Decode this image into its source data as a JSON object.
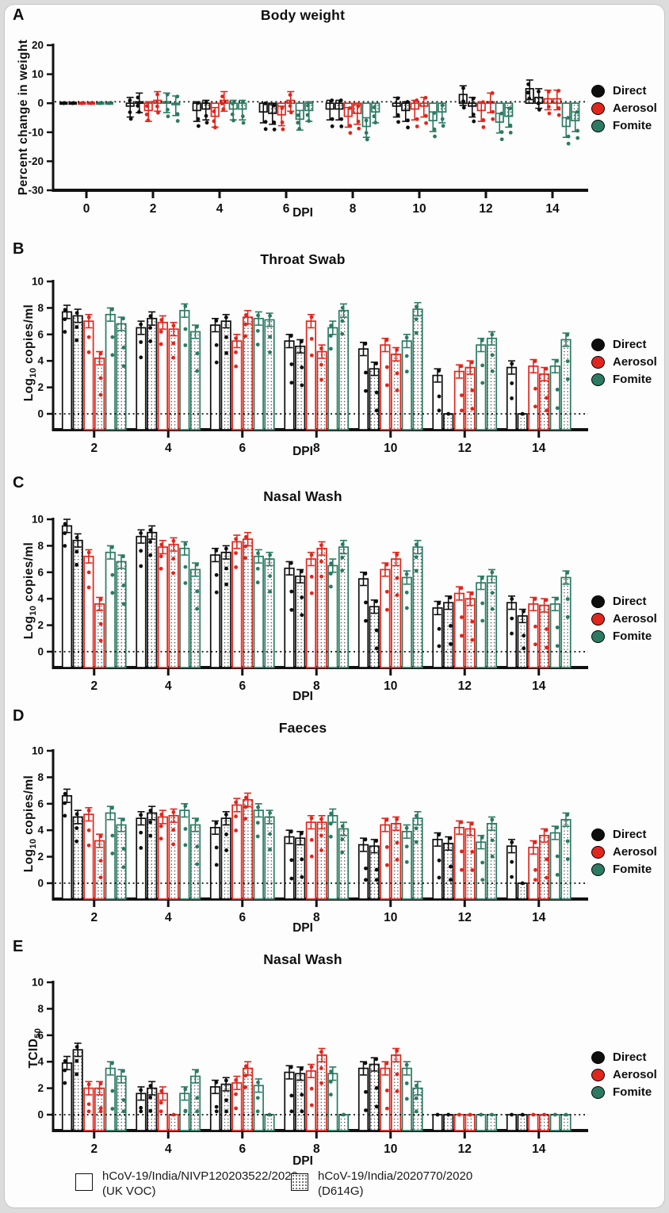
{
  "figure": {
    "series_legend": {
      "items": [
        {
          "label": "Direct",
          "color": "#0e0e0e"
        },
        {
          "label": "Aerosol",
          "color": "#e1261d"
        },
        {
          "label": "Fomite",
          "color": "#2c7a62"
        }
      ]
    },
    "bottom_legend": {
      "items": [
        {
          "swatch": "open",
          "line1": "hCoV-19/India/NIVP120203522/2020",
          "line2": "(UK VOC)"
        },
        {
          "swatch": "dotted",
          "line1": "hCoV-19/India/2020770/2020",
          "line2": "(D614G)"
        }
      ]
    }
  },
  "chart_data": [
    {
      "panel": "A",
      "type": "bar",
      "title": "Body weight",
      "xlabel": "DPI",
      "ylabel_pre": "Percent change in weight",
      "ylabel_sub": "",
      "ylabel_post": "",
      "categories": [
        0,
        2,
        4,
        6,
        8,
        10,
        12,
        14
      ],
      "ylim": [
        -30,
        20
      ],
      "yticks": [
        20,
        10,
        0,
        -10,
        -20,
        -30
      ],
      "ref_line_y": 0.5,
      "grid": false,
      "legend_position": "right",
      "series": [
        {
          "name": "Direct (UK VOC)",
          "color": "#0e0e0e",
          "fill": "open",
          "values": [
            0,
            -1,
            -2.5,
            -3,
            -2,
            -1,
            3,
            5
          ]
        },
        {
          "name": "Direct (D614G)",
          "color": "#0e0e0e",
          "fill": "dotted",
          "values": [
            0,
            0.5,
            -2,
            -3.5,
            -2,
            -2.5,
            -1,
            2
          ]
        },
        {
          "name": "Aerosol (UK VOC)",
          "color": "#e1261d",
          "fill": "open",
          "values": [
            0,
            -2.5,
            -4.5,
            -4,
            -4.5,
            -2,
            -2.5,
            1.5
          ]
        },
        {
          "name": "Aerosol (D614G)",
          "color": "#e1261d",
          "fill": "dotted",
          "values": [
            0,
            1,
            1,
            1,
            -3.5,
            -1,
            0.5,
            1.5
          ]
        },
        {
          "name": "Fomite (UK VOC)",
          "color": "#2c7a62",
          "fill": "open",
          "values": [
            0,
            0.5,
            -2,
            -5.5,
            -8,
            -6,
            -6.5,
            -8
          ]
        },
        {
          "name": "Fomite (D614G)",
          "color": "#2c7a62",
          "fill": "dotted",
          "values": [
            0,
            -0.5,
            -2,
            -2.5,
            -3,
            -3,
            -4.5,
            -6
          ]
        }
      ]
    },
    {
      "panel": "B",
      "type": "bar",
      "title": "Throat Swab",
      "xlabel": "DPI",
      "ylabel_pre": "Log",
      "ylabel_sub": "10",
      "ylabel_post": " copies/ml",
      "categories": [
        2,
        4,
        6,
        8,
        10,
        12,
        14
      ],
      "ylim": [
        0,
        10
      ],
      "yticks": [
        10,
        8,
        6,
        4,
        2,
        0
      ],
      "ref_line_y": 0,
      "grid": false,
      "legend_position": "right",
      "series": [
        {
          "name": "Direct (UK VOC)",
          "color": "#0e0e0e",
          "fill": "open",
          "values": [
            7.7,
            6.5,
            6.7,
            5.5,
            4.9,
            2.9,
            3.5
          ]
        },
        {
          "name": "Direct (D614G)",
          "color": "#0e0e0e",
          "fill": "dotted",
          "values": [
            7.4,
            7.2,
            7.0,
            5.1,
            3.4,
            0,
            0
          ]
        },
        {
          "name": "Aerosol (UK VOC)",
          "color": "#e1261d",
          "fill": "open",
          "values": [
            7.0,
            6.9,
            5.5,
            7.0,
            5.2,
            3.2,
            3.6
          ]
        },
        {
          "name": "Aerosol (D614G)",
          "color": "#e1261d",
          "fill": "dotted",
          "values": [
            4.2,
            6.4,
            7.3,
            4.7,
            4.5,
            3.5,
            3.0
          ]
        },
        {
          "name": "Fomite (UK VOC)",
          "color": "#2c7a62",
          "fill": "open",
          "values": [
            7.5,
            7.8,
            7.2,
            6.5,
            5.5,
            5.2,
            3.6
          ]
        },
        {
          "name": "Fomite (D614G)",
          "color": "#2c7a62",
          "fill": "dotted",
          "values": [
            6.8,
            6.2,
            7.1,
            7.8,
            7.9,
            5.7,
            5.6
          ]
        }
      ]
    },
    {
      "panel": "C",
      "type": "bar",
      "title": "Nasal Wash",
      "xlabel": "DPI",
      "ylabel_pre": "Log",
      "ylabel_sub": "10",
      "ylabel_post": " copies/ml",
      "categories": [
        2,
        4,
        6,
        8,
        10,
        12,
        14
      ],
      "ylim": [
        0,
        10
      ],
      "yticks": [
        10,
        8,
        6,
        4,
        2,
        0
      ],
      "ref_line_y": 0,
      "grid": false,
      "legend_position": "right",
      "series": [
        {
          "name": "Direct (UK VOC)",
          "color": "#0e0e0e",
          "fill": "open",
          "values": [
            9.5,
            8.7,
            7.3,
            6.3,
            5.5,
            3.3,
            3.7
          ]
        },
        {
          "name": "Direct (D614G)",
          "color": "#0e0e0e",
          "fill": "dotted",
          "values": [
            8.4,
            9.0,
            7.5,
            5.7,
            3.4,
            3.7,
            2.7
          ]
        },
        {
          "name": "Aerosol (UK VOC)",
          "color": "#e1261d",
          "fill": "open",
          "values": [
            7.2,
            7.9,
            8.3,
            7.0,
            6.2,
            4.4,
            3.6
          ]
        },
        {
          "name": "Aerosol (D614G)",
          "color": "#e1261d",
          "fill": "dotted",
          "values": [
            3.6,
            8.1,
            8.5,
            7.8,
            7.0,
            4.0,
            3.5
          ]
        },
        {
          "name": "Fomite (UK VOC)",
          "color": "#2c7a62",
          "fill": "open",
          "values": [
            7.5,
            7.8,
            7.2,
            6.5,
            5.6,
            5.2,
            3.6
          ]
        },
        {
          "name": "Fomite (D614G)",
          "color": "#2c7a62",
          "fill": "dotted",
          "values": [
            6.8,
            6.2,
            7.0,
            7.9,
            7.9,
            5.7,
            5.6
          ]
        }
      ]
    },
    {
      "panel": "D",
      "type": "bar",
      "title": "Faeces",
      "xlabel": "DPI",
      "ylabel_pre": "Log",
      "ylabel_sub": "10",
      "ylabel_post": " copies/ml",
      "categories": [
        2,
        4,
        6,
        8,
        10,
        12,
        14
      ],
      "ylim": [
        0,
        10
      ],
      "yticks": [
        10,
        8,
        6,
        4,
        2,
        0
      ],
      "ref_line_y": 0,
      "grid": false,
      "legend_position": "right",
      "series": [
        {
          "name": "Direct (UK VOC)",
          "color": "#0e0e0e",
          "fill": "open",
          "values": [
            6.6,
            4.9,
            4.2,
            3.5,
            2.9,
            3.3,
            2.8
          ]
        },
        {
          "name": "Direct (D614G)",
          "color": "#0e0e0e",
          "fill": "dotted",
          "values": [
            5.0,
            5.3,
            4.9,
            3.4,
            2.8,
            3.0,
            0
          ]
        },
        {
          "name": "Aerosol (UK VOC)",
          "color": "#e1261d",
          "fill": "open",
          "values": [
            5.2,
            5.0,
            5.9,
            4.6,
            4.4,
            4.2,
            2.7
          ]
        },
        {
          "name": "Aerosol (D614G)",
          "color": "#e1261d",
          "fill": "dotted",
          "values": [
            3.2,
            5.1,
            6.3,
            4.6,
            4.5,
            4.1,
            3.6
          ]
        },
        {
          "name": "Fomite (UK VOC)",
          "color": "#2c7a62",
          "fill": "open",
          "values": [
            5.3,
            5.5,
            5.5,
            5.1,
            3.9,
            3.1,
            3.8
          ]
        },
        {
          "name": "Fomite (D614G)",
          "color": "#2c7a62",
          "fill": "dotted",
          "values": [
            4.4,
            4.4,
            5.0,
            4.1,
            4.9,
            4.5,
            4.8
          ]
        }
      ]
    },
    {
      "panel": "E",
      "type": "bar",
      "title": "Nasal Wash",
      "xlabel": "DPI",
      "ylabel_pre": "TCID",
      "ylabel_sub": "50",
      "ylabel_post": "",
      "categories": [
        2,
        4,
        6,
        8,
        10,
        12,
        14
      ],
      "ylim": [
        0,
        10
      ],
      "yticks": [
        10,
        8,
        6,
        4,
        2,
        0
      ],
      "ref_line_y": 0,
      "grid": false,
      "legend_position": "right",
      "series": [
        {
          "name": "Direct (UK VOC)",
          "color": "#0e0e0e",
          "fill": "open",
          "values": [
            3.9,
            1.6,
            2.1,
            3.2,
            3.5,
            0,
            0
          ]
        },
        {
          "name": "Direct (D614G)",
          "color": "#0e0e0e",
          "fill": "dotted",
          "values": [
            4.9,
            2.0,
            2.3,
            3.1,
            3.8,
            0,
            0
          ]
        },
        {
          "name": "Aerosol (UK VOC)",
          "color": "#e1261d",
          "fill": "open",
          "values": [
            2.0,
            1.6,
            2.4,
            3.3,
            3.5,
            0,
            0
          ]
        },
        {
          "name": "Aerosol (D614G)",
          "color": "#e1261d",
          "fill": "dotted",
          "values": [
            2.0,
            0,
            3.5,
            4.5,
            4.5,
            0,
            0
          ]
        },
        {
          "name": "Fomite (UK VOC)",
          "color": "#2c7a62",
          "fill": "open",
          "values": [
            3.5,
            1.6,
            2.2,
            3.1,
            3.5,
            0,
            0
          ]
        },
        {
          "name": "Fomite (D614G)",
          "color": "#2c7a62",
          "fill": "dotted",
          "values": [
            2.9,
            2.9,
            0,
            0,
            2.0,
            0,
            0
          ]
        }
      ]
    }
  ]
}
